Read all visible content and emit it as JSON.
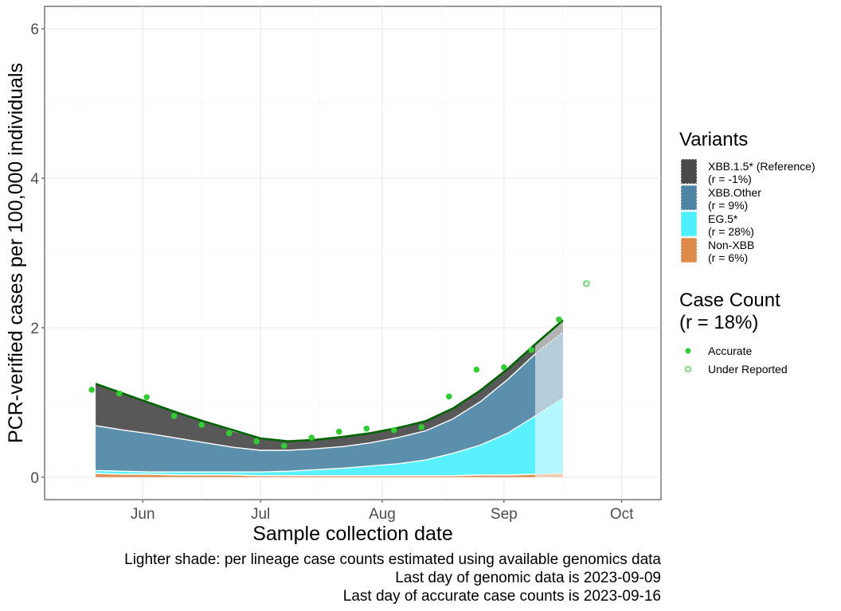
{
  "chart_data": {
    "type": "area",
    "xlabel": "Sample collection date",
    "ylabel": "PCR-verified cases per 100,000 individuals",
    "x_range": [
      "2023-05-07",
      "2023-10-11"
    ],
    "ylim": [
      -0.3,
      6.3
    ],
    "y_ticks": [
      0,
      2,
      4,
      6
    ],
    "x_ticks": [
      {
        "date": "2023-06-01",
        "label": "Jun"
      },
      {
        "date": "2023-07-01",
        "label": "Jul"
      },
      {
        "date": "2023-08-01",
        "label": "Aug"
      },
      {
        "date": "2023-09-01",
        "label": "Sep"
      },
      {
        "date": "2023-10-01",
        "label": "Oct"
      }
    ],
    "x_minor_ticks": [
      "2023-05-16",
      "2023-06-16",
      "2023-07-16",
      "2023-08-16",
      "2023-09-16"
    ],
    "grid": true,
    "x": [
      "2023-05-20",
      "2023-05-27",
      "2023-06-03",
      "2023-06-10",
      "2023-06-17",
      "2023-06-24",
      "2023-07-01",
      "2023-07-08",
      "2023-07-15",
      "2023-07-22",
      "2023-07-29",
      "2023-08-05",
      "2023-08-12",
      "2023-08-19",
      "2023-08-26",
      "2023-09-02",
      "2023-09-09",
      "2023-09-16"
    ],
    "series": [
      {
        "name": "Non-XBB",
        "color": "#dd8a4a",
        "values": [
          0.05,
          0.04,
          0.04,
          0.03,
          0.03,
          0.03,
          0.02,
          0.02,
          0.02,
          0.02,
          0.02,
          0.02,
          0.02,
          0.02,
          0.03,
          0.03,
          0.04,
          0.05
        ]
      },
      {
        "name": "EG.5*",
        "color": "#4cf0ff",
        "values": [
          0.04,
          0.04,
          0.03,
          0.04,
          0.04,
          0.04,
          0.05,
          0.06,
          0.08,
          0.1,
          0.13,
          0.16,
          0.21,
          0.3,
          0.4,
          0.56,
          0.78,
          1.01
        ]
      },
      {
        "name": "XBB.Other",
        "color": "#4e85a4",
        "values": [
          0.6,
          0.55,
          0.51,
          0.45,
          0.39,
          0.33,
          0.29,
          0.28,
          0.28,
          0.29,
          0.31,
          0.35,
          0.39,
          0.46,
          0.58,
          0.72,
          0.83,
          0.88
        ]
      },
      {
        "name": "XBB.1.5* (Reference)",
        "color": "#4a4a4a",
        "values": [
          0.56,
          0.49,
          0.41,
          0.34,
          0.28,
          0.21,
          0.16,
          0.12,
          0.12,
          0.13,
          0.13,
          0.13,
          0.13,
          0.14,
          0.15,
          0.14,
          0.13,
          0.15
        ]
      }
    ],
    "estimated_from": "2023-09-09",
    "total_line": {
      "color": "#006400",
      "values": [
        1.25,
        1.12,
        0.99,
        0.86,
        0.74,
        0.63,
        0.52,
        0.48,
        0.5,
        0.54,
        0.59,
        0.66,
        0.75,
        0.92,
        1.16,
        1.45,
        1.78,
        2.1
      ]
    },
    "points_accurate": [
      {
        "x": "2023-05-19",
        "y": 1.17
      },
      {
        "x": "2023-05-26",
        "y": 1.12
      },
      {
        "x": "2023-06-02",
        "y": 1.07
      },
      {
        "x": "2023-06-09",
        "y": 0.82
      },
      {
        "x": "2023-06-16",
        "y": 0.7
      },
      {
        "x": "2023-06-23",
        "y": 0.59
      },
      {
        "x": "2023-06-30",
        "y": 0.48
      },
      {
        "x": "2023-07-07",
        "y": 0.42
      },
      {
        "x": "2023-07-14",
        "y": 0.53
      },
      {
        "x": "2023-07-21",
        "y": 0.61
      },
      {
        "x": "2023-07-28",
        "y": 0.65
      },
      {
        "x": "2023-08-04",
        "y": 0.63
      },
      {
        "x": "2023-08-11",
        "y": 0.67
      },
      {
        "x": "2023-08-18",
        "y": 1.08
      },
      {
        "x": "2023-08-25",
        "y": 1.44
      },
      {
        "x": "2023-09-01",
        "y": 1.47
      },
      {
        "x": "2023-09-08",
        "y": 1.7
      },
      {
        "x": "2023-09-15",
        "y": 2.11
      }
    ],
    "points_under_reported": [
      {
        "x": "2023-09-22",
        "y": 2.59
      }
    ],
    "point_color": "#33cc33",
    "legend": {
      "placement": "right",
      "variants_title": "Variants",
      "variants": [
        {
          "name": "XBB.1.5* (Reference)",
          "r": "(r = -1%)",
          "color": "#4a4a4a"
        },
        {
          "name": "XBB.Other",
          "r": "(r = 9%)",
          "color": "#4e85a4"
        },
        {
          "name": "EG.5*",
          "r": "(r = 28%)",
          "color": "#4cf0ff"
        },
        {
          "name": "Non-XBB",
          "r": "(r = 6%)",
          "color": "#dd8a4a"
        }
      ],
      "case_title_line1": "Case Count",
      "case_title_line2": "(r = 18%)",
      "case_items": [
        {
          "label": "Accurate",
          "style": "filled"
        },
        {
          "label": "Under Reported",
          "style": "open"
        }
      ]
    },
    "caption": [
      "Lighter shade: per lineage case counts estimated using available genomics data",
      "Last day of genomic data is 2023-09-09",
      "Last day of accurate case counts is 2023-09-16"
    ]
  }
}
